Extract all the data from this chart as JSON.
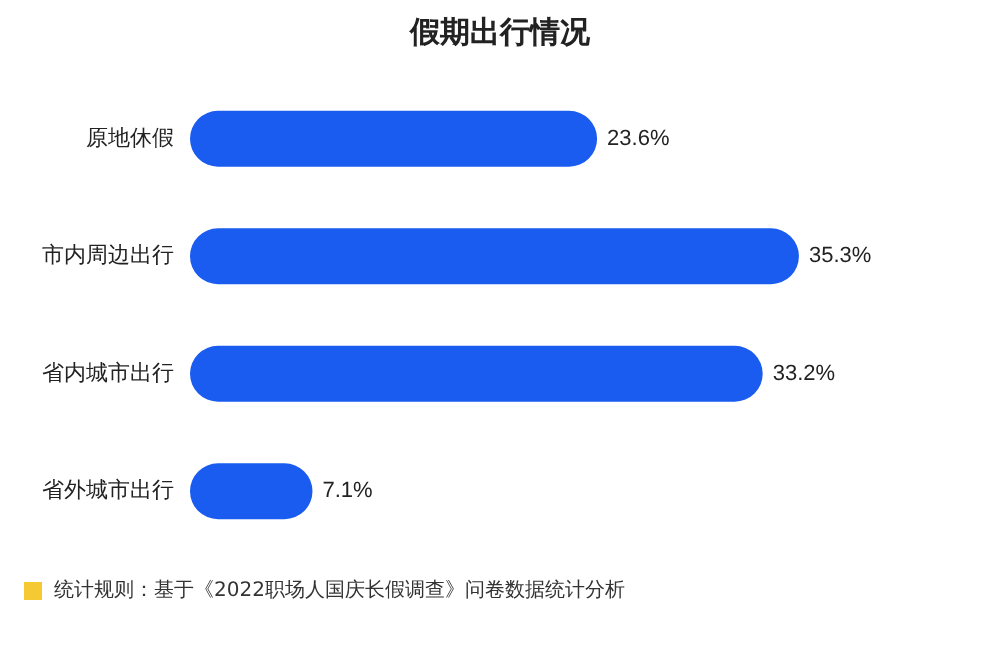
{
  "chart_data": {
    "type": "bar",
    "orientation": "horizontal",
    "title": "假期出行情况",
    "categories": [
      "原地休假",
      "市内周边出行",
      "省内城市出行",
      "省外城市出行"
    ],
    "values": [
      23.6,
      35.3,
      33.2,
      7.1
    ],
    "value_labels": [
      "23.6%",
      "35.3%",
      "33.2%",
      "7.1%"
    ],
    "color": "#1a5cf0",
    "annotations": [
      "统计规则：基于《2022职场人国庆长假调查》问卷数据统计分析"
    ]
  }
}
